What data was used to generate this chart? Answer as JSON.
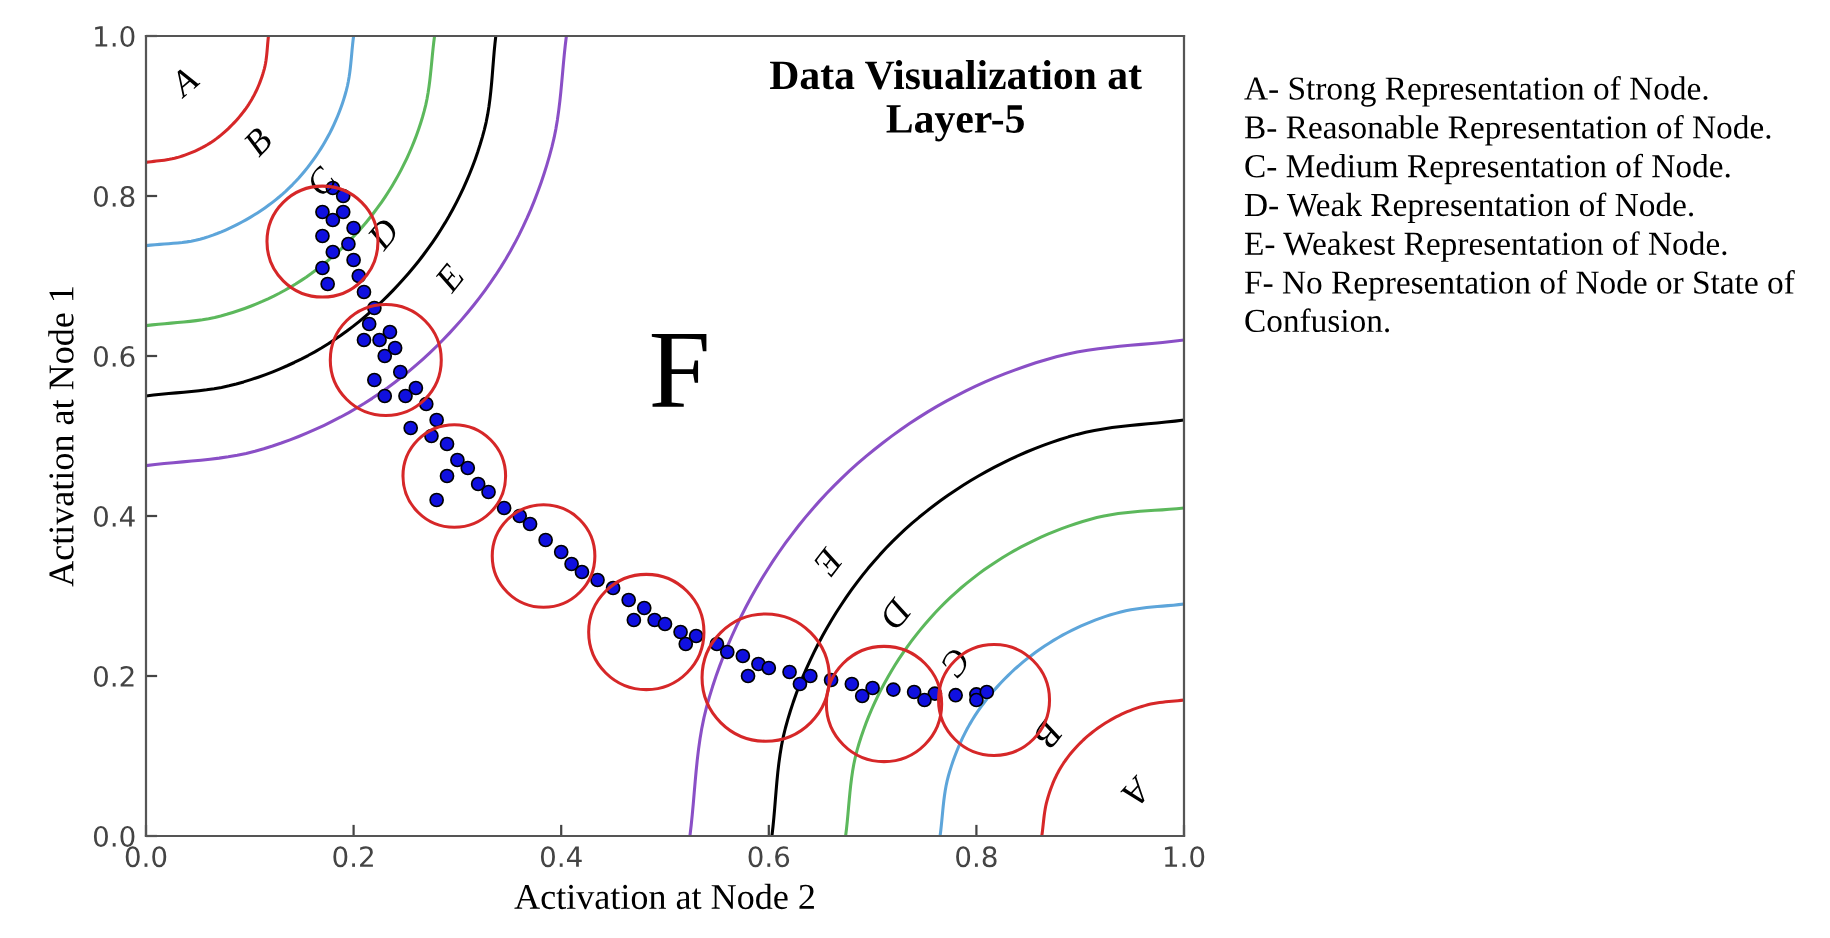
{
  "chart_data": {
    "type": "scatter",
    "title": "Data Visualization at\nLayer-5",
    "xlabel": "Activation at Node 2",
    "ylabel": "Activation at Node 1",
    "xlim": [
      0,
      1
    ],
    "ylim": [
      0,
      1
    ],
    "xticks": [
      {
        "value": 0,
        "label": "0.0"
      },
      {
        "value": 0.2,
        "label": "0.2"
      },
      {
        "value": 0.4,
        "label": "0.4"
      },
      {
        "value": 0.6,
        "label": "0.6"
      },
      {
        "value": 0.8,
        "label": "0.8"
      },
      {
        "value": 1,
        "label": "1.0"
      }
    ],
    "yticks": [
      {
        "value": 0,
        "label": "0.0"
      },
      {
        "value": 0.2,
        "label": "0.2"
      },
      {
        "value": 0.4,
        "label": "0.4"
      },
      {
        "value": 0.6,
        "label": "0.6"
      },
      {
        "value": 0.8,
        "label": "0.8"
      },
      {
        "value": 1,
        "label": "1.0"
      }
    ],
    "grid": false,
    "series": [
      {
        "type": "line",
        "color": "#d62728",
        "x": [
          0.118,
          0.114,
          0.102,
          0.083,
          0.059,
          0.03,
          0
        ],
        "values": [
          1,
          0.959,
          0.921,
          0.889,
          0.864,
          0.848,
          0.842
        ]
      },
      {
        "type": "line",
        "color": "#5da5da",
        "x": [
          0.2,
          0.193,
          0.173,
          0.141,
          0.1,
          0.052,
          0
        ],
        "values": [
          1,
          0.932,
          0.869,
          0.814,
          0.773,
          0.746,
          0.738
        ]
      },
      {
        "type": "line",
        "color": "#5cb85c",
        "x": [
          0.278,
          0.268,
          0.24,
          0.196,
          0.139,
          0.072,
          0
        ],
        "values": [
          1,
          0.906,
          0.819,
          0.744,
          0.686,
          0.65,
          0.638
        ]
      },
      {
        "type": "line",
        "color": "#000000",
        "x": [
          0.337,
          0.326,
          0.292,
          0.238,
          0.169,
          0.087,
          0
        ],
        "values": [
          1,
          0.883,
          0.775,
          0.682,
          0.61,
          0.565,
          0.55
        ]
      },
      {
        "type": "line",
        "color": "#8a4fc6",
        "x": [
          0.405,
          0.391,
          0.351,
          0.286,
          0.203,
          0.105,
          0
        ],
        "values": [
          1,
          0.861,
          0.731,
          0.62,
          0.535,
          0.481,
          0.463
        ]
      },
      {
        "type": "line",
        "color": "#d62728",
        "x": [
          0.863,
          0.868,
          0.881,
          0.903,
          0.932,
          0.965,
          1
        ],
        "values": [
          0,
          0.044,
          0.085,
          0.12,
          0.147,
          0.164,
          0.17
        ]
      },
      {
        "type": "line",
        "color": "#5da5da",
        "x": [
          0.765,
          0.773,
          0.796,
          0.834,
          0.883,
          0.939,
          1
        ],
        "values": [
          0,
          0.075,
          0.145,
          0.205,
          0.251,
          0.28,
          0.29
        ]
      },
      {
        "type": "line",
        "color": "#5cb85c",
        "x": [
          0.674,
          0.685,
          0.718,
          0.77,
          0.837,
          0.916,
          1
        ],
        "values": [
          0,
          0.107,
          0.206,
          0.292,
          0.357,
          0.398,
          0.41
        ]
      },
      {
        "type": "line",
        "color": "#000000",
        "x": [
          0.603,
          0.616,
          0.656,
          0.719,
          0.802,
          0.897,
          1
        ],
        "values": [
          0,
          0.135,
          0.26,
          0.368,
          0.45,
          0.502,
          0.52
        ]
      },
      {
        "type": "line",
        "color": "#8a4fc6",
        "x": [
          0.524,
          0.54,
          0.588,
          0.663,
          0.762,
          0.877,
          1
        ],
        "values": [
          0,
          0.161,
          0.31,
          0.438,
          0.537,
          0.599,
          0.62
        ]
      },
      {
        "color": "#1010e0",
        "marker": "circle",
        "x": [
          0.18,
          0.19,
          0.17,
          0.18,
          0.17,
          0.18,
          0.17,
          0.175,
          0.19,
          0.2,
          0.195,
          0.2,
          0.205,
          0.21,
          0.22,
          0.215,
          0.225,
          0.235,
          0.24,
          0.23,
          0.245,
          0.26,
          0.25,
          0.27,
          0.28,
          0.275,
          0.29,
          0.3,
          0.31,
          0.29,
          0.32,
          0.33,
          0.345,
          0.36,
          0.37,
          0.385,
          0.4,
          0.41,
          0.42,
          0.435,
          0.45,
          0.465,
          0.48,
          0.49,
          0.5,
          0.515,
          0.53,
          0.55,
          0.56,
          0.575,
          0.59,
          0.6,
          0.62,
          0.64,
          0.66,
          0.68,
          0.7,
          0.72,
          0.74,
          0.76,
          0.78,
          0.8,
          0.81,
          0.47,
          0.52,
          0.58,
          0.63,
          0.69,
          0.75,
          0.8,
          0.22,
          0.23,
          0.21,
          0.28,
          0.255
        ],
        "values": [
          0.81,
          0.8,
          0.78,
          0.77,
          0.75,
          0.73,
          0.71,
          0.69,
          0.78,
          0.76,
          0.74,
          0.72,
          0.7,
          0.68,
          0.66,
          0.64,
          0.62,
          0.63,
          0.61,
          0.6,
          0.58,
          0.56,
          0.55,
          0.54,
          0.52,
          0.5,
          0.49,
          0.47,
          0.46,
          0.45,
          0.44,
          0.43,
          0.41,
          0.4,
          0.39,
          0.37,
          0.355,
          0.34,
          0.33,
          0.32,
          0.31,
          0.295,
          0.285,
          0.27,
          0.265,
          0.255,
          0.25,
          0.24,
          0.23,
          0.225,
          0.215,
          0.21,
          0.205,
          0.2,
          0.195,
          0.19,
          0.185,
          0.183,
          0.18,
          0.178,
          0.176,
          0.177,
          0.18,
          0.27,
          0.24,
          0.2,
          0.19,
          0.175,
          0.17,
          0.17,
          0.57,
          0.55,
          0.62,
          0.42,
          0.51
        ]
      },
      {
        "type": "bubble",
        "color": "#d62728",
        "x": [
          0.17,
          0.231,
          0.297,
          0.383,
          0.482,
          0.597,
          0.711,
          0.817
        ],
        "values": [
          0.743,
          0.595,
          0.45,
          0.35,
          0.255,
          0.198,
          0.165,
          0.17
        ],
        "sizes": [
          0.76,
          0.76,
          0.65,
          0.65,
          0.82,
          1,
          0.82,
          0.76
        ]
      }
    ],
    "annotations": [
      "A",
      "B",
      "C",
      "D",
      "E",
      "E",
      "D",
      "C",
      "B",
      "A",
      "F",
      "A- Strong Representation of Node.",
      "B- Reasonable Representation of Node.",
      "C- Medium Representation of Node.",
      "D- Weak Representation of Node.",
      "E- Weakest Representation of Node.",
      "F- No Representation of Node or State of Confusion."
    ]
  }
}
